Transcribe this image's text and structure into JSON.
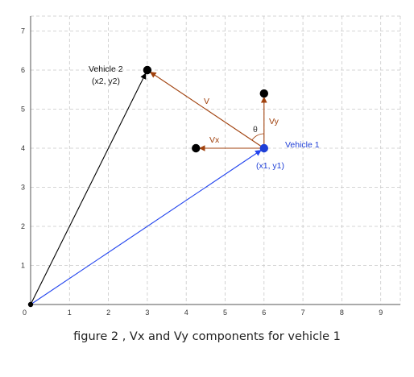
{
  "chart_data": {
    "type": "vector-diagram",
    "xlim": [
      0,
      9
    ],
    "ylim": [
      0,
      7
    ],
    "grid": true,
    "x_ticks": [
      "0",
      "1",
      "2",
      "3",
      "4",
      "5",
      "6",
      "7",
      "8",
      "9"
    ],
    "y_ticks": [
      "1",
      "2",
      "3",
      "4",
      "5",
      "6",
      "7"
    ],
    "points": [
      {
        "id": "origin",
        "x": 0,
        "y": 0
      },
      {
        "id": "vehicle1",
        "x": 6,
        "y": 4,
        "color": "#1f3fd6"
      },
      {
        "id": "vehicle2",
        "x": 3,
        "y": 6,
        "color": "#000000"
      },
      {
        "id": "vx_end",
        "x": 4.25,
        "y": 4,
        "color": "#000000"
      },
      {
        "id": "vy_end",
        "x": 6,
        "y": 5.4,
        "color": "#000000"
      }
    ],
    "vectors": [
      {
        "id": "origin-to-v1",
        "from": [
          0,
          0
        ],
        "to": [
          6,
          4
        ],
        "color": "#2244ee"
      },
      {
        "id": "origin-to-v2",
        "from": [
          0,
          0
        ],
        "to": [
          3,
          6
        ],
        "color": "#000000"
      },
      {
        "id": "V",
        "from": [
          6,
          4
        ],
        "to": [
          3,
          6
        ],
        "color": "#a0410d"
      },
      {
        "id": "Vx",
        "from": [
          6,
          4
        ],
        "to": [
          4.25,
          4
        ],
        "color": "#a0410d"
      },
      {
        "id": "Vy",
        "from": [
          6,
          4
        ],
        "to": [
          6,
          5.4
        ],
        "color": "#a0410d"
      }
    ],
    "labels": {
      "vehicle2_name": "Vehicle 2",
      "vehicle2_coords": "(x2, y2)",
      "vehicle1_name": "Vehicle 1",
      "vehicle1_coords": "(x1, y1)",
      "v": "V",
      "vx": "Vx",
      "vy": "Vy",
      "theta": "θ"
    }
  },
  "caption": "figure 2 , Vx and Vy components for vehicle 1"
}
